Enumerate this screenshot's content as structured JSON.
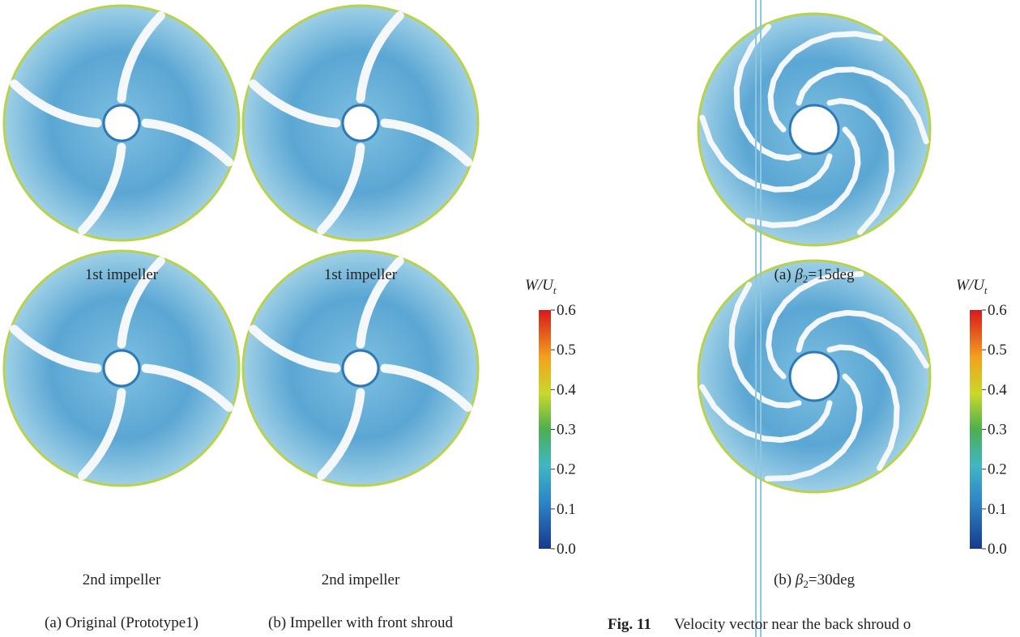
{
  "left_figure": {
    "panels": [
      {
        "label": "1st impeller"
      },
      {
        "label": "1st impeller"
      },
      {
        "label": "2nd impeller"
      },
      {
        "label": "2nd impeller"
      }
    ],
    "captions": [
      "(a) Original (Prototype1)",
      "(b) Impeller with front shroud"
    ],
    "colorbar": {
      "title": "W/U",
      "title_sub": "t",
      "ticks": [
        0.6,
        0.5,
        0.4,
        0.3,
        0.2,
        0.1,
        {
          "value": 0,
          "label": "0.0"
        }
      ]
    }
  },
  "right_figure": {
    "panels": [
      {
        "prefix": "(a)",
        "symbol": "β",
        "sub": "2",
        "rest": "=15deg"
      },
      {
        "prefix": "(b)",
        "symbol": "β",
        "sub": "2",
        "rest": "=30deg"
      }
    ],
    "colorbar": {
      "title": "W/U",
      "title_sub": "t",
      "ticks": [
        0.6,
        0.5,
        0.4,
        0.3,
        0.2,
        0.1,
        {
          "value": 0,
          "label": "0.0"
        }
      ]
    },
    "caption": {
      "number": "Fig. 11",
      "text": "Velocity vector near the back shroud o"
    }
  }
}
